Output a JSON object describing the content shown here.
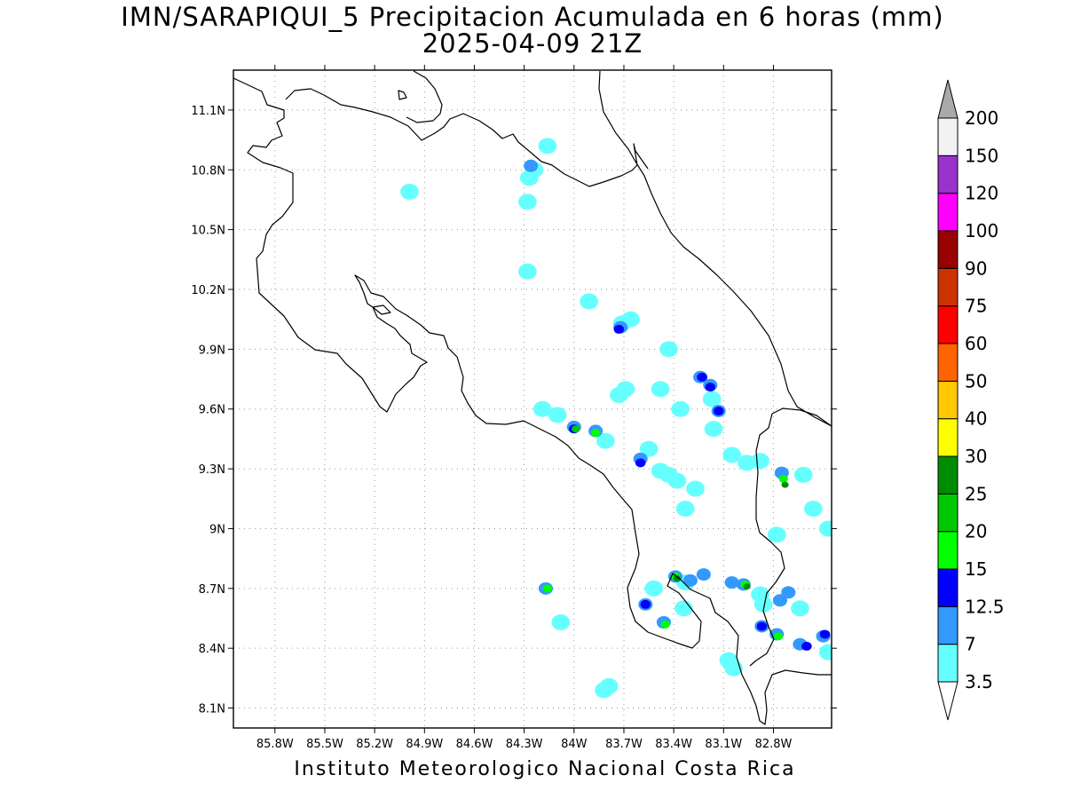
{
  "title": {
    "line1": "IMN/SARAPIQUI_5 Precipitacion Acumulada en 6 horas (mm)",
    "line2": "2025-04-09 21Z"
  },
  "footer": "Instituto Meteorologico Nacional Costa Rica",
  "map": {
    "lon_range": [
      -86.05,
      -82.45
    ],
    "lat_range": [
      8.0,
      11.3
    ],
    "x_ticks": [
      {
        "lon": -85.8,
        "label": "85.8W"
      },
      {
        "lon": -85.5,
        "label": "85.5W"
      },
      {
        "lon": -85.2,
        "label": "85.2W"
      },
      {
        "lon": -84.9,
        "label": "84.9W"
      },
      {
        "lon": -84.6,
        "label": "84.6W"
      },
      {
        "lon": -84.3,
        "label": "84.3W"
      },
      {
        "lon": -84.0,
        "label": "84W"
      },
      {
        "lon": -83.7,
        "label": "83.7W"
      },
      {
        "lon": -83.4,
        "label": "83.4W"
      },
      {
        "lon": -83.1,
        "label": "83.1W"
      },
      {
        "lon": -82.8,
        "label": "82.8W"
      }
    ],
    "y_ticks": [
      {
        "lat": 8.1,
        "label": "8.1N"
      },
      {
        "lat": 8.4,
        "label": "8.4N"
      },
      {
        "lat": 8.7,
        "label": "8.7N"
      },
      {
        "lat": 9.0,
        "label": "9N"
      },
      {
        "lat": 9.3,
        "label": "9.3N"
      },
      {
        "lat": 9.6,
        "label": "9.6N"
      },
      {
        "lat": 9.9,
        "label": "9.9N"
      },
      {
        "lat": 10.2,
        "label": "10.2N"
      },
      {
        "lat": 10.5,
        "label": "10.5N"
      },
      {
        "lat": 10.8,
        "label": "10.8N"
      },
      {
        "lat": 11.1,
        "label": "11.1N"
      }
    ],
    "grid": "dotted",
    "precip_cells": [
      {
        "lon": -84.26,
        "lat": 10.82,
        "level": 1
      },
      {
        "lon": -84.24,
        "lat": 10.8,
        "level": 0
      },
      {
        "lon": -84.27,
        "lat": 10.76,
        "level": 0
      },
      {
        "lon": -84.16,
        "lat": 10.92,
        "level": 0
      },
      {
        "lon": -84.99,
        "lat": 10.69,
        "level": 0
      },
      {
        "lon": -84.28,
        "lat": 10.29,
        "level": 0
      },
      {
        "lon": -84.28,
        "lat": 10.64,
        "level": 0
      },
      {
        "lon": -83.91,
        "lat": 10.14,
        "level": 0
      },
      {
        "lon": -83.71,
        "lat": 10.03,
        "level": 0
      },
      {
        "lon": -83.66,
        "lat": 10.05,
        "level": 0
      },
      {
        "lon": -83.72,
        "lat": 10.01,
        "level": 1
      },
      {
        "lon": -83.73,
        "lat": 10.0,
        "level": 2
      },
      {
        "lon": -83.69,
        "lat": 9.7,
        "level": 0
      },
      {
        "lon": -83.73,
        "lat": 9.67,
        "level": 0
      },
      {
        "lon": -83.48,
        "lat": 9.7,
        "level": 0
      },
      {
        "lon": -83.43,
        "lat": 9.9,
        "level": 0
      },
      {
        "lon": -83.36,
        "lat": 9.6,
        "level": 0
      },
      {
        "lon": -83.24,
        "lat": 9.76,
        "level": 1
      },
      {
        "lon": -83.23,
        "lat": 9.76,
        "level": 2
      },
      {
        "lon": -83.18,
        "lat": 9.72,
        "level": 1
      },
      {
        "lon": -83.18,
        "lat": 9.71,
        "level": 2
      },
      {
        "lon": -83.13,
        "lat": 9.59,
        "level": 1
      },
      {
        "lon": -83.13,
        "lat": 9.59,
        "level": 2
      },
      {
        "lon": -83.17,
        "lat": 9.65,
        "level": 0
      },
      {
        "lon": -83.16,
        "lat": 9.5,
        "level": 0
      },
      {
        "lon": -83.05,
        "lat": 9.37,
        "level": 0
      },
      {
        "lon": -84.19,
        "lat": 9.6,
        "level": 0
      },
      {
        "lon": -84.1,
        "lat": 9.57,
        "level": 0
      },
      {
        "lon": -84.0,
        "lat": 9.51,
        "level": 1
      },
      {
        "lon": -84.0,
        "lat": 9.5,
        "level": 2
      },
      {
        "lon": -83.99,
        "lat": 9.5,
        "level": 4
      },
      {
        "lon": -83.87,
        "lat": 9.49,
        "level": 1
      },
      {
        "lon": -83.87,
        "lat": 9.48,
        "level": 3
      },
      {
        "lon": -83.81,
        "lat": 9.44,
        "level": 0
      },
      {
        "lon": -83.6,
        "lat": 9.35,
        "level": 1
      },
      {
        "lon": -83.6,
        "lat": 9.33,
        "level": 2
      },
      {
        "lon": -83.55,
        "lat": 9.4,
        "level": 0
      },
      {
        "lon": -83.48,
        "lat": 9.29,
        "level": 0
      },
      {
        "lon": -83.43,
        "lat": 9.27,
        "level": 0
      },
      {
        "lon": -83.38,
        "lat": 9.24,
        "level": 0
      },
      {
        "lon": -83.33,
        "lat": 9.1,
        "level": 0
      },
      {
        "lon": -83.27,
        "lat": 9.2,
        "level": 0
      },
      {
        "lon": -82.96,
        "lat": 9.33,
        "level": 0
      },
      {
        "lon": -82.88,
        "lat": 9.34,
        "level": 0
      },
      {
        "lon": -82.75,
        "lat": 9.28,
        "level": 1
      },
      {
        "lon": -82.74,
        "lat": 9.25,
        "level": 3
      },
      {
        "lon": -82.73,
        "lat": 9.22,
        "level": 5
      },
      {
        "lon": -82.62,
        "lat": 9.27,
        "level": 0
      },
      {
        "lon": -82.56,
        "lat": 9.1,
        "level": 0
      },
      {
        "lon": -82.47,
        "lat": 9.0,
        "level": 0
      },
      {
        "lon": -82.78,
        "lat": 8.97,
        "level": 0
      },
      {
        "lon": -84.17,
        "lat": 8.7,
        "level": 1
      },
      {
        "lon": -84.16,
        "lat": 8.7,
        "level": 3
      },
      {
        "lon": -84.08,
        "lat": 8.53,
        "level": 0
      },
      {
        "lon": -83.39,
        "lat": 8.76,
        "level": 1
      },
      {
        "lon": -83.39,
        "lat": 8.76,
        "level": 3
      },
      {
        "lon": -83.38,
        "lat": 8.75,
        "level": 5
      },
      {
        "lon": -83.3,
        "lat": 8.74,
        "level": 1
      },
      {
        "lon": -83.33,
        "lat": 8.73,
        "level": 0
      },
      {
        "lon": -83.22,
        "lat": 8.77,
        "level": 1
      },
      {
        "lon": -83.57,
        "lat": 8.62,
        "level": 1
      },
      {
        "lon": -83.57,
        "lat": 8.62,
        "level": 2
      },
      {
        "lon": -83.52,
        "lat": 8.7,
        "level": 0
      },
      {
        "lon": -83.46,
        "lat": 8.53,
        "level": 1
      },
      {
        "lon": -83.45,
        "lat": 8.52,
        "level": 3
      },
      {
        "lon": -83.34,
        "lat": 8.6,
        "level": 0
      },
      {
        "lon": -83.05,
        "lat": 8.73,
        "level": 1
      },
      {
        "lon": -82.98,
        "lat": 8.72,
        "level": 1
      },
      {
        "lon": -82.97,
        "lat": 8.72,
        "level": 3
      },
      {
        "lon": -82.96,
        "lat": 8.71,
        "level": 5
      },
      {
        "lon": -82.88,
        "lat": 8.67,
        "level": 0
      },
      {
        "lon": -82.86,
        "lat": 8.62,
        "level": 0
      },
      {
        "lon": -82.87,
        "lat": 8.51,
        "level": 1
      },
      {
        "lon": -82.87,
        "lat": 8.51,
        "level": 2
      },
      {
        "lon": -82.78,
        "lat": 8.47,
        "level": 1
      },
      {
        "lon": -82.77,
        "lat": 8.46,
        "level": 3
      },
      {
        "lon": -82.76,
        "lat": 8.64,
        "level": 1
      },
      {
        "lon": -82.71,
        "lat": 8.68,
        "level": 1
      },
      {
        "lon": -82.64,
        "lat": 8.6,
        "level": 0
      },
      {
        "lon": -82.64,
        "lat": 8.42,
        "level": 1
      },
      {
        "lon": -82.6,
        "lat": 8.41,
        "level": 2
      },
      {
        "lon": -82.5,
        "lat": 8.46,
        "level": 1
      },
      {
        "lon": -82.49,
        "lat": 8.47,
        "level": 2
      },
      {
        "lon": -82.47,
        "lat": 8.38,
        "level": 0
      },
      {
        "lon": -83.07,
        "lat": 8.34,
        "level": 0
      },
      {
        "lon": -83.04,
        "lat": 8.3,
        "level": 0
      },
      {
        "lon": -83.79,
        "lat": 8.21,
        "level": 0
      },
      {
        "lon": -83.82,
        "lat": 8.19,
        "level": 0
      }
    ]
  },
  "legend": {
    "labels": [
      "3.5",
      "7",
      "12.5",
      "15",
      "20",
      "25",
      "30",
      "40",
      "50",
      "60",
      "75",
      "90",
      "100",
      "120",
      "150",
      "200"
    ],
    "colors": [
      "#66ffff",
      "#3399ff",
      "#0000ff",
      "#00ff00",
      "#00c800",
      "#008c00",
      "#ffff00",
      "#ffc800",
      "#ff6400",
      "#ff0000",
      "#cc3300",
      "#990000",
      "#ff00ff",
      "#9933cc",
      "#f2f2f2",
      "#aaaaaa"
    ],
    "under_color": "#ffffff",
    "over_color": "#aaaaaa"
  },
  "colors": {
    "coastline": "#000000",
    "grid": "#999999"
  }
}
